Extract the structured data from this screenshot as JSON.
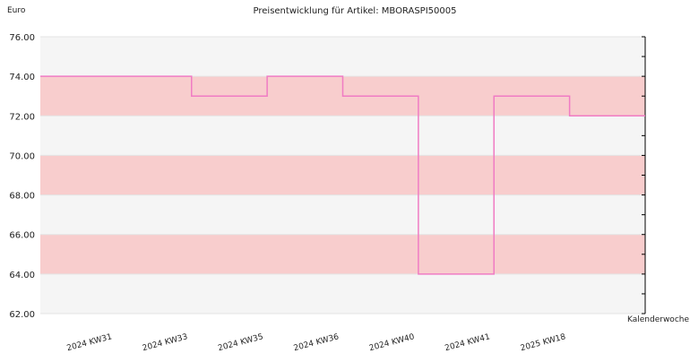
{
  "chart_data": {
    "type": "step",
    "title": "Preisentwicklung für Artikel: MBORASPI50005",
    "ylabel": "Euro",
    "xlabel": "Kalenderwoche",
    "categories": [
      null,
      "2024 KW31",
      "2024 KW33",
      "2024 KW35",
      "2024 KW36",
      "2024 KW40",
      "2024 KW41",
      "2025 KW18"
    ],
    "values": [
      74,
      74,
      73,
      74,
      73,
      64,
      73,
      72
    ],
    "color": "#f07cc4",
    "band_colors": [
      "#f5f5f5",
      "#f8cdcd"
    ],
    "ylim": [
      62,
      76
    ],
    "yticks": [
      {
        "value": 62,
        "label": "62.00"
      },
      {
        "value": 64,
        "label": "64.00"
      },
      {
        "value": 66,
        "label": "66.00"
      },
      {
        "value": 68,
        "label": "68.00"
      },
      {
        "value": 70,
        "label": "70.00"
      },
      {
        "value": 72,
        "label": "72.00"
      },
      {
        "value": 74,
        "label": "74.00"
      },
      {
        "value": 76,
        "label": "76.00"
      }
    ],
    "minor_yticks": [
      63,
      65,
      67,
      69,
      71,
      73,
      75
    ]
  }
}
